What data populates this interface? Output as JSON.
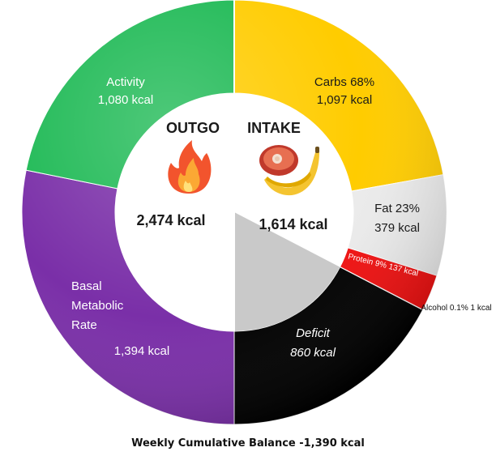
{
  "chart_data": {
    "type": "pie",
    "outgo": {
      "title": "OUTGO",
      "total_label": "2,474 kcal",
      "total": 2474,
      "segments": [
        {
          "name": "Activity",
          "value": 1080,
          "label": "Activity",
          "value_label": "1,080 kcal",
          "color": "#1DB954"
        },
        {
          "name": "Basal Metabolic Rate",
          "value": 1394,
          "label": "Basal\nMetabolic\nRate",
          "value_label": "1,394 kcal",
          "color": "#7A2FA8"
        }
      ]
    },
    "intake": {
      "title": "INTAKE",
      "total_label": "1,614 kcal",
      "total": 1614,
      "segments": [
        {
          "name": "Carbs",
          "value": 1097,
          "label": "Carbs 68%",
          "value_label": "1,097 kcal",
          "color": "#FFCC00"
        },
        {
          "name": "Fat",
          "value": 379,
          "label": "Fat 23%",
          "value_label": "379 kcal",
          "color": "#EBEBEB"
        },
        {
          "name": "Protein",
          "value": 137,
          "label": "Protein 9% 137 kcal",
          "value_label": "",
          "color": "#F01010"
        },
        {
          "name": "Alcohol",
          "value": 1,
          "label": "Alcohol 0.1% 1 kcal",
          "value_label": "",
          "color": "#111111"
        }
      ],
      "deficit": {
        "name": "Deficit",
        "value": 860,
        "label": "Deficit",
        "value_label": "860 kcal",
        "color": "#000000"
      }
    },
    "footer": "Weekly Cumulative Balance -1,390 kcal"
  }
}
